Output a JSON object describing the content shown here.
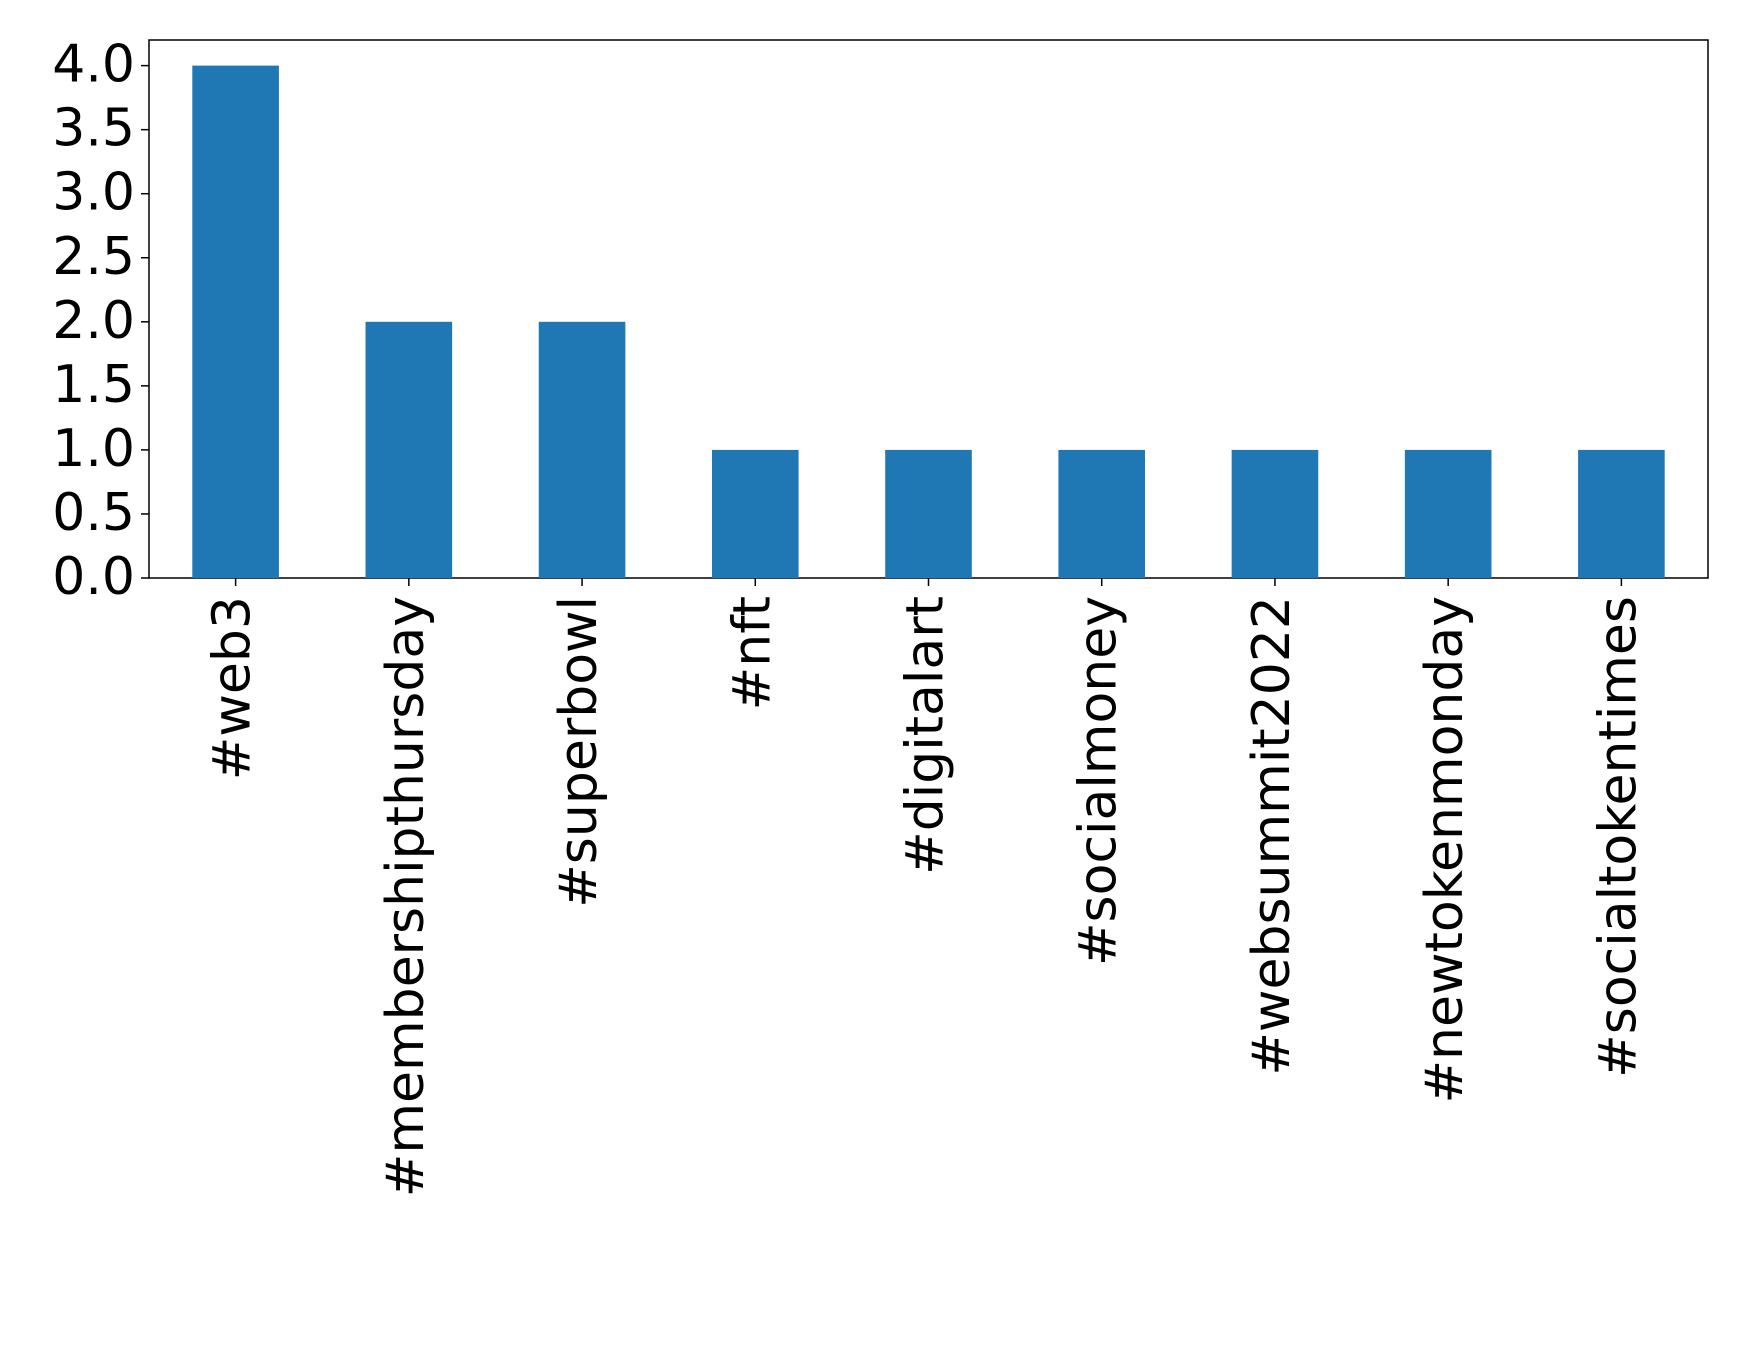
{
  "chart_data": {
    "type": "bar",
    "categories": [
      "#web3",
      "#membershipthursday",
      "#superbowl",
      "#nft",
      "#digitalart",
      "#socialmoney",
      "#websummit2022",
      "#newtokenmonday",
      "#socialtokentimes"
    ],
    "values": [
      4,
      2,
      2,
      1,
      1,
      1,
      1,
      1,
      1
    ],
    "color": "#1f77b4",
    "ylim": [
      0,
      4.2
    ],
    "yticks": [
      {
        "value": 0,
        "label": "0.0"
      },
      0.5,
      {
        "value": 1,
        "label": "1.0"
      },
      1.5,
      {
        "value": 2,
        "label": "2.0"
      },
      2.5,
      {
        "value": 3,
        "label": "3.0"
      },
      3.5,
      {
        "value": 4,
        "label": "4.0"
      }
    ],
    "grid": false
  }
}
